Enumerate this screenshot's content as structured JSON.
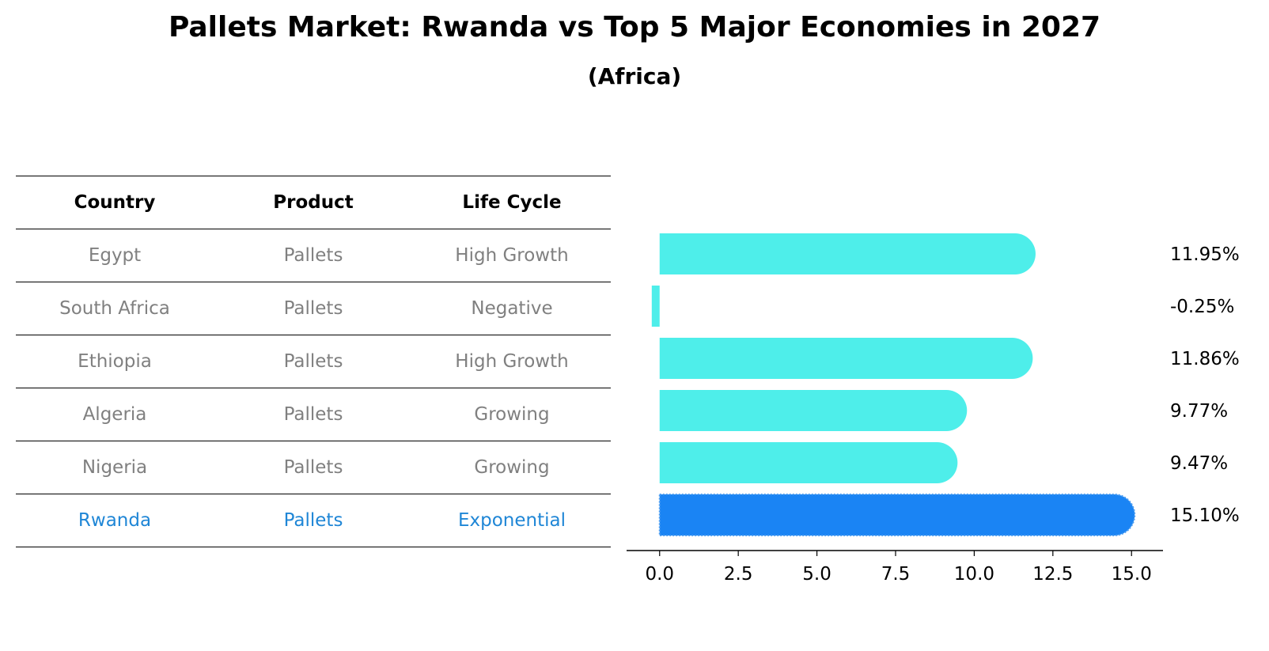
{
  "title": "Pallets Market: Rwanda vs Top 5 Major Economies in 2027",
  "subtitle": "(Africa)",
  "table": {
    "headers": [
      "Country",
      "Product",
      "Life Cycle"
    ],
    "rows": [
      [
        "Egypt",
        "Pallets",
        "High Growth"
      ],
      [
        "South Africa",
        "Pallets",
        "Negative"
      ],
      [
        "Ethiopia",
        "Pallets",
        "High Growth"
      ],
      [
        "Algeria",
        "Pallets",
        "Growing"
      ],
      [
        "Nigeria",
        "Pallets",
        "Growing"
      ],
      [
        "Rwanda",
        "Pallets",
        "Exponential"
      ]
    ],
    "highlight_row": "Rwanda"
  },
  "chart_data": {
    "type": "bar",
    "orientation": "horizontal",
    "categories": [
      "Egypt",
      "South Africa",
      "Ethiopia",
      "Algeria",
      "Nigeria",
      "Rwanda"
    ],
    "values": [
      11.95,
      -0.25,
      11.86,
      9.77,
      9.47,
      15.1
    ],
    "labels": [
      "11.95%",
      "-0.25%",
      "11.86%",
      "9.77%",
      "9.47%",
      "15.10%"
    ],
    "xticks": [
      "0.0",
      "2.5",
      "5.0",
      "7.5",
      "10.0",
      "12.5",
      "15.0"
    ],
    "xlim": [
      -1.05,
      16.0
    ],
    "highlight": "Rwanda",
    "colors": {
      "default": "#4eeeea",
      "highlight": "#1a84f4",
      "text": "#000000"
    }
  }
}
